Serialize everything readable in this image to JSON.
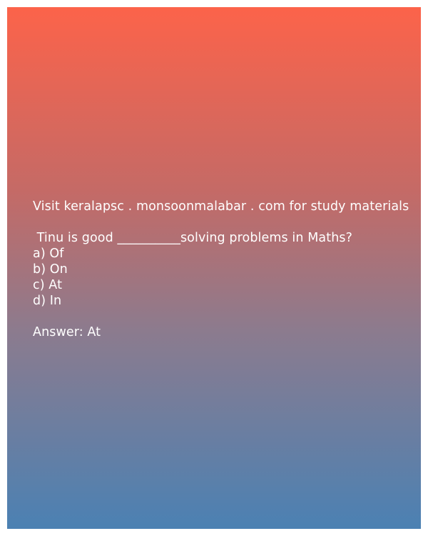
{
  "header": {
    "visit_text": "Visit keralapsc . monsoonmalabar . com for study materials"
  },
  "question": {
    "text": " Tinu is good __________solving problems in Maths?",
    "options": [
      "a) Of",
      "b) On",
      "c) At",
      "d) In"
    ]
  },
  "answer": {
    "text": "Answer: At"
  },
  "colors": {
    "gradient_top": "#fc634a",
    "gradient_bottom": "#4b81b3",
    "text": "#ffffff"
  }
}
